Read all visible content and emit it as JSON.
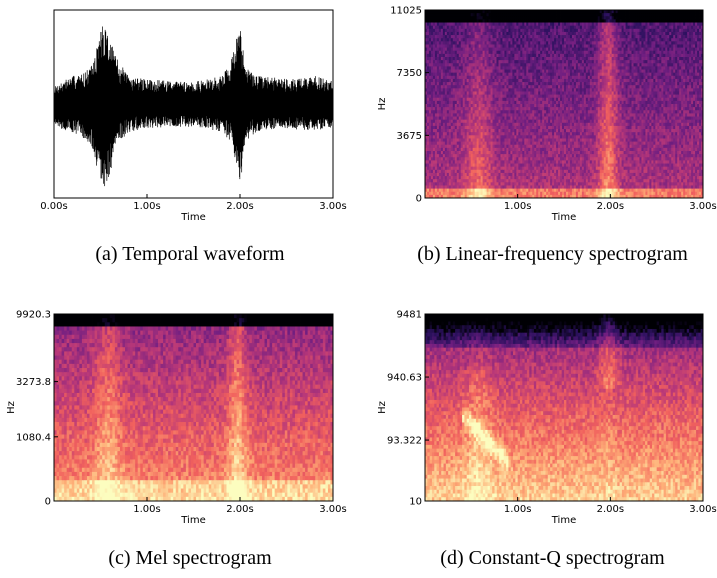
{
  "chart_data": [
    {
      "id": "a",
      "type": "line",
      "caption": "(a) Temporal waveform",
      "xlabel": "Time",
      "ylabel": "",
      "xlim": [
        0,
        3
      ],
      "xticks": [
        {
          "value": 0,
          "label": "0.00s"
        },
        {
          "value": 1,
          "label": "1.00s"
        },
        {
          "value": 2,
          "label": "2.00s"
        },
        {
          "value": 3,
          "label": "3.00s"
        }
      ],
      "yticks": [],
      "ylim": [
        -1,
        1
      ],
      "envelope": {
        "x": [
          0.0,
          0.1,
          0.2,
          0.3,
          0.4,
          0.45,
          0.5,
          0.55,
          0.6,
          0.65,
          0.7,
          0.8,
          0.9,
          1.0,
          1.2,
          1.4,
          1.6,
          1.8,
          1.9,
          1.95,
          2.0,
          2.05,
          2.1,
          2.2,
          2.4,
          2.6,
          2.8,
          3.0
        ],
        "upper": [
          0.18,
          0.25,
          0.3,
          0.32,
          0.4,
          0.55,
          0.8,
          0.9,
          0.7,
          0.55,
          0.45,
          0.3,
          0.28,
          0.26,
          0.25,
          0.24,
          0.25,
          0.3,
          0.45,
          0.65,
          0.85,
          0.5,
          0.35,
          0.3,
          0.28,
          0.27,
          0.3,
          0.25
        ],
        "lower": [
          -0.2,
          -0.28,
          -0.3,
          -0.35,
          -0.45,
          -0.7,
          -0.85,
          -0.9,
          -0.75,
          -0.55,
          -0.4,
          -0.3,
          -0.28,
          -0.26,
          -0.25,
          -0.24,
          -0.25,
          -0.3,
          -0.4,
          -0.6,
          -0.88,
          -0.45,
          -0.35,
          -0.3,
          -0.28,
          -0.27,
          -0.28,
          -0.25
        ]
      }
    },
    {
      "id": "b",
      "type": "heatmap",
      "caption": "(b) Linear-frequency spectrogram",
      "xlabel": "Time",
      "ylabel": "Hz",
      "scale": "linear",
      "xlim": [
        0,
        3
      ],
      "ylim": [
        0,
        11025
      ],
      "xticks": [
        {
          "value": 1,
          "label": "1.00s"
        },
        {
          "value": 2,
          "label": "2.00s"
        },
        {
          "value": 3,
          "label": "3.00s"
        }
      ],
      "yticks": [
        {
          "value": 0,
          "label": "0"
        },
        {
          "value": 3675,
          "label": "3675"
        },
        {
          "value": 7350,
          "label": "7350"
        },
        {
          "value": 11025,
          "label": "11025"
        }
      ],
      "colormap": [
        "#000004",
        "#2c115f",
        "#721f81",
        "#b73779",
        "#f1605d",
        "#feb078",
        "#fcfdbf"
      ]
    },
    {
      "id": "c",
      "type": "heatmap",
      "caption": "(c) Mel spectrogram",
      "xlabel": "Time",
      "ylabel": "Hz",
      "scale": "mel",
      "xlim": [
        0,
        3
      ],
      "ylim": [
        0,
        9920.3
      ],
      "xticks": [
        {
          "value": 1,
          "label": "1.00s"
        },
        {
          "value": 2,
          "label": "2.00s"
        },
        {
          "value": 3,
          "label": "3.00s"
        }
      ],
      "yticks": [
        {
          "value": 0,
          "label": "0"
        },
        {
          "value": 1080.4,
          "label": "1080.4"
        },
        {
          "value": 3273.8,
          "label": "3273.8"
        },
        {
          "value": 9920.3,
          "label": "9920.3"
        }
      ],
      "colormap": [
        "#000004",
        "#2c115f",
        "#721f81",
        "#b73779",
        "#f1605d",
        "#feb078",
        "#fcfdbf"
      ]
    },
    {
      "id": "d",
      "type": "heatmap",
      "caption": "(d) Constant-Q spectrogram",
      "xlabel": "Time",
      "ylabel": "Hz",
      "scale": "log",
      "xlim": [
        0,
        3
      ],
      "ylim": [
        10,
        9481
      ],
      "xticks": [
        {
          "value": 1,
          "label": "1.00s"
        },
        {
          "value": 2,
          "label": "2.00s"
        },
        {
          "value": 3,
          "label": "3.00s"
        }
      ],
      "yticks": [
        {
          "value": 10,
          "label": "10"
        },
        {
          "value": 93.322,
          "label": "93.322"
        },
        {
          "value": 940.63,
          "label": "940.63"
        },
        {
          "value": 9481,
          "label": "9481"
        }
      ],
      "colormap": [
        "#000004",
        "#2c115f",
        "#721f81",
        "#b73779",
        "#f1605d",
        "#feb078",
        "#fcfdbf"
      ]
    }
  ]
}
